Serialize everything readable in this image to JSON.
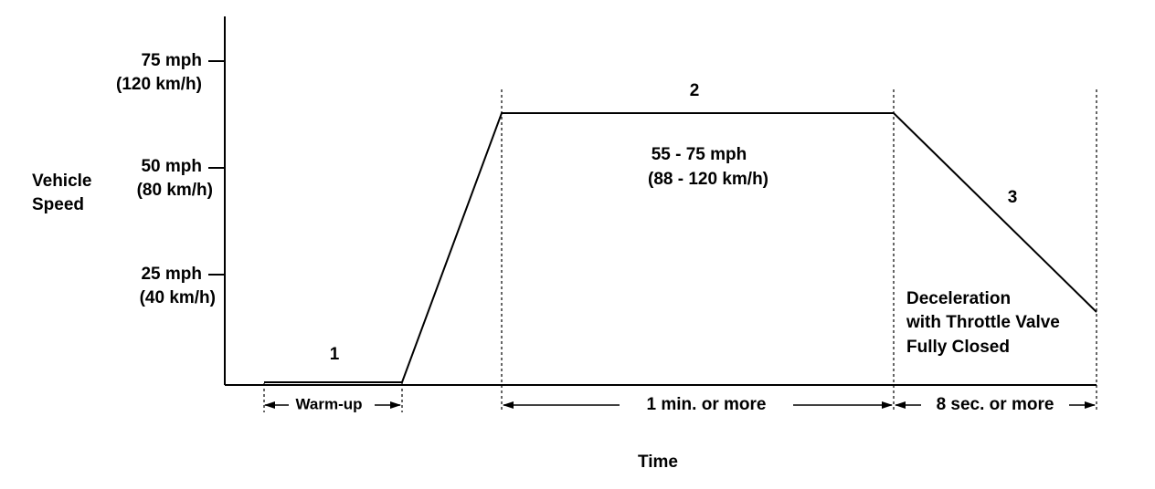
{
  "y_axis": {
    "label": [
      "Vehicle",
      "Speed"
    ],
    "ticks": [
      {
        "mph": "75 mph",
        "kmh": "(120 km/h)"
      },
      {
        "mph": "50 mph",
        "kmh": "(80 km/h)"
      },
      {
        "mph": "25 mph",
        "kmh": "(40 km/h)"
      }
    ]
  },
  "x_axis": {
    "label": "Time"
  },
  "phases": [
    {
      "number": "1",
      "duration": "Warm-up"
    },
    {
      "number": "2",
      "speed": [
        "55 - 75 mph",
        "(88 - 120 km/h)"
      ],
      "duration": "1 min. or more"
    },
    {
      "number": "3",
      "note": [
        "Deceleration",
        "with Throttle Valve",
        "Fully Closed"
      ],
      "duration": "8 sec. or more"
    }
  ]
}
